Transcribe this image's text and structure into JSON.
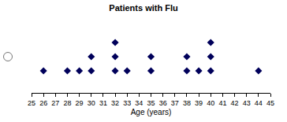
{
  "chart_data": {
    "type": "dot",
    "title": "Patients with Flu",
    "x_label": "Age (years)",
    "x": [
      26,
      28,
      29,
      30,
      32,
      33,
      35,
      38,
      39,
      40,
      44
    ],
    "values": [
      1,
      1,
      1,
      2,
      3,
      1,
      2,
      2,
      1,
      3,
      1
    ],
    "color": "#00005a",
    "marker": "diamond",
    "xlim": [
      25,
      45
    ],
    "xticks": [
      25,
      26,
      27,
      28,
      29,
      30,
      31,
      32,
      33,
      34,
      35,
      36,
      37,
      38,
      39,
      40,
      41,
      42,
      43,
      44,
      45
    ],
    "grid": false,
    "tick_labels": "x"
  }
}
